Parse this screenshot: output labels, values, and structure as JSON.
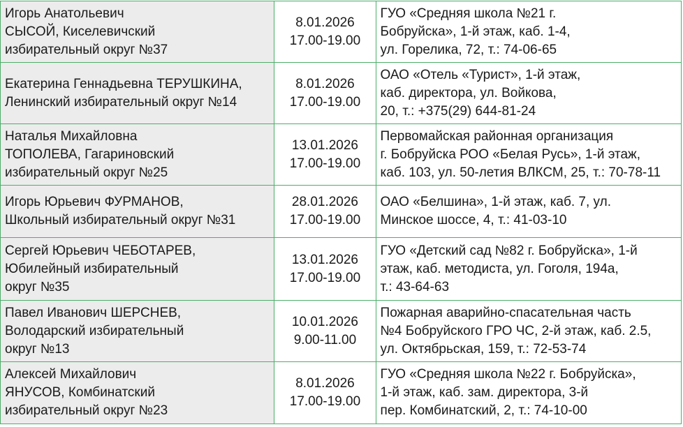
{
  "rows": [
    {
      "name": [
        "Игорь Анатольевич",
        "СЫСОЙ, Киселевичский",
        "избирательный округ №37"
      ],
      "date": "8.01.2026",
      "time": "17.00-19.00",
      "place": [
        "ГУО «Средняя школа №21 г.",
        "Бобруйска», 1-й этаж, каб. 1-4,",
        "ул. Горелика, 72, т.: 74-06-65"
      ]
    },
    {
      "name": [
        "Екатерина Геннадьевна ТЕРУШКИНА,",
        "Ленинский избирательный округ №14"
      ],
      "date": "8.01.2026",
      "time": "17.00-19.00",
      "place": [
        "ОАО «Отель «Турист», 1-й этаж,",
        "каб. директора, ул. Войкова,",
        "20, т.: +375(29) 644-81-24"
      ]
    },
    {
      "name": [
        "Наталья Михайловна",
        "ТОПОЛЕВА, Гагариновский",
        "избирательный округ №25"
      ],
      "date": "13.01.2026",
      "time": "17.00-19.00",
      "place": [
        "Первомайская районная организация",
        "г. Бобруйска РОО «Белая Русь», 1-й этаж,",
        "каб. 103, ул. 50-летия ВЛКСМ, 25, т.: 70-78-11"
      ]
    },
    {
      "name": [
        "Игорь Юрьевич ФУРМАНОВ,",
        "Школьный избирательный округ №31"
      ],
      "date": "28.01.2026",
      "time": "17.00-19.00",
      "place": [
        "ОАО «Белшина», 1-й этаж, каб. 7, ул.",
        "Минское шоссе, 4, т.: 41-03-10"
      ]
    },
    {
      "name": [
        "Сергей Юрьевич ЧЕБОТАРЕВ,",
        "Юбилейный избирательный",
        "округ №35"
      ],
      "date": "13.01.2026",
      "time": "17.00-19.00",
      "place": [
        "ГУО «Детский сад №82 г. Бобруйска», 1-й",
        "этаж, каб. методиста, ул. Гоголя, 194а,",
        "т.: 43-64-63"
      ]
    },
    {
      "name": [
        "Павел Иванович ШЕРСНЕВ,",
        "Володарский избирательный",
        "округ №13"
      ],
      "date": "10.01.2026",
      "time": "9.00-11.00",
      "place": [
        "Пожарная аварийно-спасательная часть",
        "№4 Бобруйского ГРО ЧС, 2-й этаж, каб. 2.5,",
        "ул. Октябрьская, 159, т.: 72-53-74"
      ]
    },
    {
      "name": [
        "Алексей Михайлович",
        "ЯНУСОВ, Комбинатский",
        "избирательный округ №23"
      ],
      "date": "8.01.2026",
      "time": "17.00-19.00",
      "place": [
        "ГУО «Средняя школа №22 г. Бобруйска»,",
        "1-й этаж, каб. зам. директора, 3-й",
        "пер. Комбинатский, 2, т.: 74-10-00"
      ]
    }
  ]
}
